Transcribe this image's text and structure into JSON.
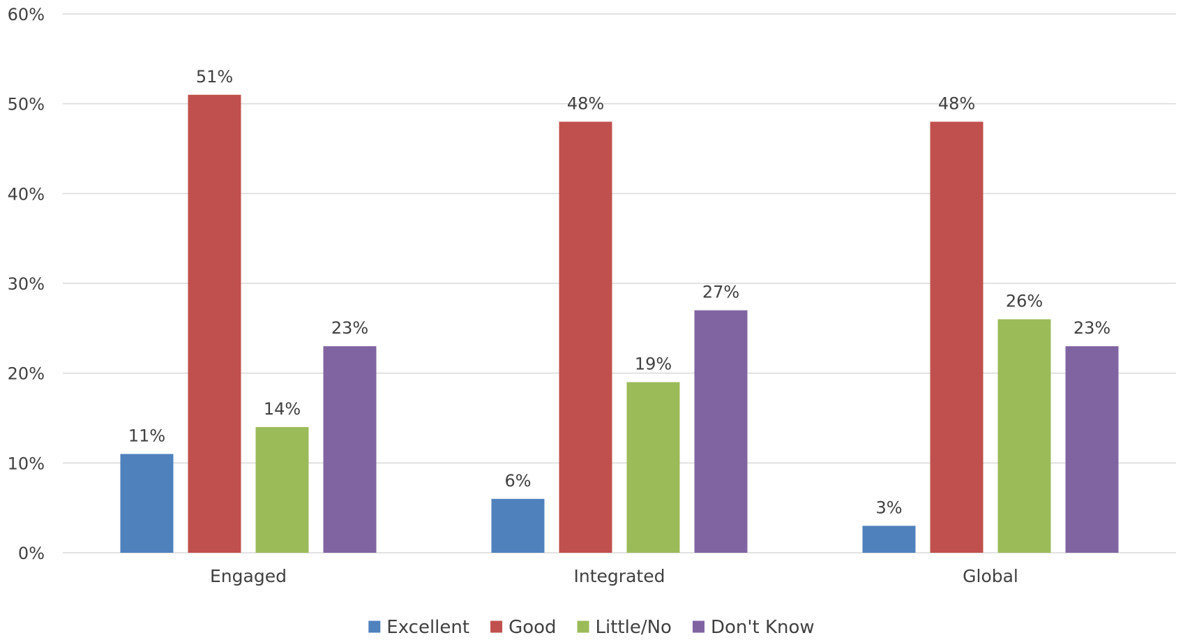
{
  "chart_data": {
    "type": "bar",
    "title": "",
    "xlabel": "",
    "ylabel": "",
    "categories": [
      "Engaged",
      "Integrated",
      "Global"
    ],
    "series": [
      {
        "name": "Excellent",
        "color": "#4f81bd",
        "values": [
          11,
          6,
          3
        ],
        "labels": [
          "11%",
          "6%",
          "3%"
        ]
      },
      {
        "name": "Good",
        "color": "#c0504d",
        "values": [
          51,
          48,
          48
        ],
        "labels": [
          "51%",
          "48%",
          "48%"
        ]
      },
      {
        "name": "Little/No",
        "color": "#9bbb59",
        "values": [
          14,
          19,
          26
        ],
        "labels": [
          "14%",
          "19%",
          "26%"
        ]
      },
      {
        "name": "Don't Know",
        "color": "#8064a2",
        "values": [
          23,
          27,
          23
        ],
        "labels": [
          "23%",
          "27%",
          "23%"
        ]
      }
    ],
    "ylim": [
      0,
      60
    ],
    "yticks": [
      0,
      10,
      20,
      30,
      40,
      50,
      60
    ],
    "ytick_labels": [
      "0%",
      "10%",
      "20%",
      "30%",
      "40%",
      "50%",
      "60%"
    ],
    "grid": true,
    "legend_position": "bottom"
  }
}
